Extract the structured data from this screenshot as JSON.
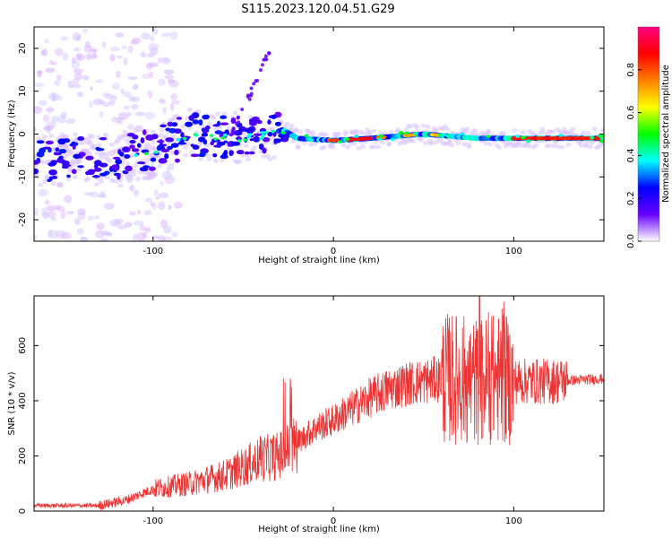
{
  "title": "S115.2023.120.04.51.G29",
  "chart_data": [
    {
      "type": "heatmap",
      "name": "spectrogram",
      "xlabel": "Height of straight line (km)",
      "ylabel": "Frequency (Hz)",
      "xlim": [
        -166,
        150
      ],
      "ylim": [
        -25,
        25
      ],
      "xticks": [
        -100,
        0,
        100
      ],
      "yticks": [
        -20,
        -10,
        0,
        10,
        20
      ],
      "colorbar": {
        "label": "Normalized spectral amplitude",
        "range": [
          0,
          1
        ],
        "ticks": [
          "0.0",
          "0.2",
          "0.4",
          "0.6",
          "0.8"
        ],
        "colors": [
          "#ffffff",
          "#6600ff",
          "#0000ff",
          "#00ffff",
          "#00ff00",
          "#ffff00",
          "#ff8000",
          "#ff0000",
          "#ff0080"
        ]
      },
      "ridge": [
        {
          "x": -166,
          "f": -6
        },
        {
          "x": -130,
          "f": -6
        },
        {
          "x": -100,
          "f": -4
        },
        {
          "x": -80,
          "f": 0
        },
        {
          "x": -50,
          "f": -1
        },
        {
          "x": -35,
          "f": 0
        },
        {
          "x": -28,
          "f": 1
        },
        {
          "x": -20,
          "f": -1
        },
        {
          "x": 0,
          "f": -1.5
        },
        {
          "x": 20,
          "f": -1
        },
        {
          "x": 50,
          "f": 0
        },
        {
          "x": 80,
          "f": -1
        },
        {
          "x": 100,
          "f": -1
        },
        {
          "x": 150,
          "f": -1
        }
      ]
    },
    {
      "type": "line",
      "name": "snr",
      "xlabel": "Height of straight line (km)",
      "ylabel": "SNR (10 * v/v)",
      "xlim": [
        -166,
        150
      ],
      "ylim": [
        0,
        780
      ],
      "xticks": [
        -100,
        0,
        100
      ],
      "yticks": [
        0,
        200,
        400,
        600
      ],
      "color": "#ee3333",
      "envelope": [
        {
          "x": -166,
          "y": 20
        },
        {
          "x": -130,
          "y": 20
        },
        {
          "x": -115,
          "y": 40
        },
        {
          "x": -100,
          "y": 80
        },
        {
          "x": -80,
          "y": 100
        },
        {
          "x": -60,
          "y": 130
        },
        {
          "x": -50,
          "y": 160
        },
        {
          "x": -40,
          "y": 190
        },
        {
          "x": -30,
          "y": 200
        },
        {
          "x": -20,
          "y": 250
        },
        {
          "x": -10,
          "y": 300
        },
        {
          "x": 0,
          "y": 330
        },
        {
          "x": 10,
          "y": 370
        },
        {
          "x": 20,
          "y": 410
        },
        {
          "x": 30,
          "y": 440
        },
        {
          "x": 40,
          "y": 460
        },
        {
          "x": 50,
          "y": 470
        },
        {
          "x": 60,
          "y": 480
        },
        {
          "x": 70,
          "y": 480
        },
        {
          "x": 80,
          "y": 470
        },
        {
          "x": 90,
          "y": 480
        },
        {
          "x": 100,
          "y": 470
        },
        {
          "x": 120,
          "y": 470
        },
        {
          "x": 150,
          "y": 480
        }
      ]
    }
  ]
}
